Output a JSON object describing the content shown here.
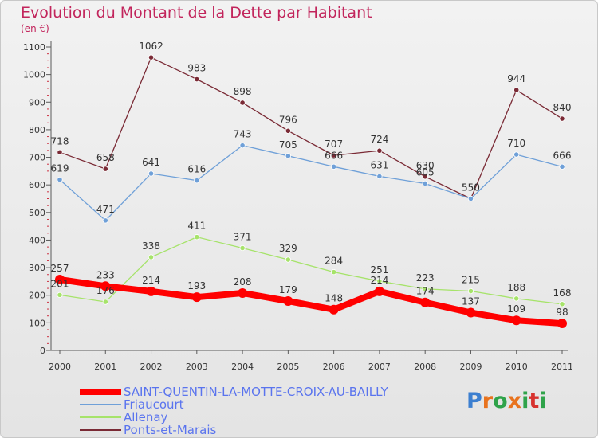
{
  "header": {
    "title": "Evolution du Montant de la Dette par Habitant",
    "subtitle": "(en €)"
  },
  "logo": {
    "text": "Proxiti"
  },
  "colors": {
    "title": "#c2255c",
    "legend_text": "#5a74ee",
    "axis": "#5a5a5a"
  },
  "chart_data": {
    "type": "line",
    "x": [
      "2000",
      "2001",
      "2002",
      "2003",
      "2004",
      "2005",
      "2006",
      "2007",
      "2008",
      "2009",
      "2010",
      "2011"
    ],
    "ylim": [
      0,
      1100
    ],
    "yticks": [
      0,
      100,
      200,
      300,
      400,
      500,
      600,
      700,
      800,
      900,
      1000,
      1100
    ],
    "grid": false,
    "legend_position": "bottom-left",
    "series": [
      {
        "name": "SAINT-QUENTIN-LA-MOTTE-CROIX-AU-BAILLY",
        "color": "#ff0000",
        "values": [
          257,
          233,
          214,
          193,
          208,
          179,
          148,
          214,
          174,
          137,
          109,
          98
        ]
      },
      {
        "name": "Friaucourt",
        "color": "#6fa0d8",
        "values": [
          619,
          471,
          641,
          616,
          743,
          705,
          666,
          631,
          605,
          550,
          710,
          666
        ]
      },
      {
        "name": "Allenay",
        "color": "#a6e36a",
        "values": [
          201,
          176,
          338,
          411,
          371,
          329,
          284,
          251,
          223,
          215,
          188,
          168
        ]
      },
      {
        "name": "Ponts-et-Marais",
        "color": "#7a2a35",
        "values": [
          718,
          658,
          1062,
          983,
          898,
          796,
          707,
          724,
          630,
          550,
          944,
          840
        ]
      }
    ]
  }
}
